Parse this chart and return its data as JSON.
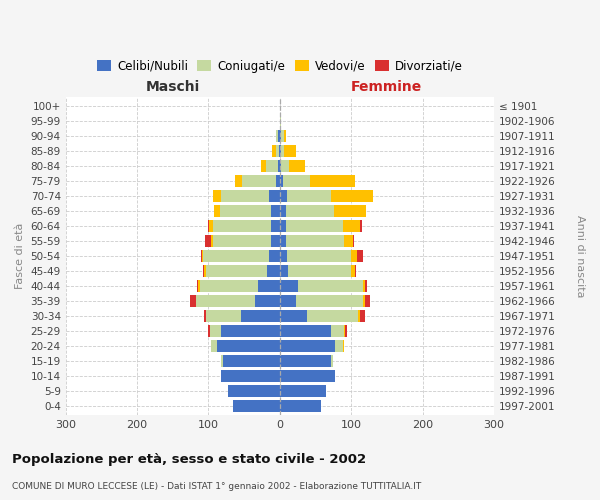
{
  "age_groups": [
    "0-4",
    "5-9",
    "10-14",
    "15-19",
    "20-24",
    "25-29",
    "30-34",
    "35-39",
    "40-44",
    "45-49",
    "50-54",
    "55-59",
    "60-64",
    "65-69",
    "70-74",
    "75-79",
    "80-84",
    "85-89",
    "90-94",
    "95-99",
    "100+"
  ],
  "birth_years": [
    "1997-2001",
    "1992-1996",
    "1987-1991",
    "1982-1986",
    "1977-1981",
    "1972-1976",
    "1967-1971",
    "1962-1966",
    "1957-1961",
    "1952-1956",
    "1947-1951",
    "1942-1946",
    "1937-1941",
    "1932-1936",
    "1927-1931",
    "1922-1926",
    "1917-1921",
    "1912-1916",
    "1907-1911",
    "1902-1906",
    "≤ 1901"
  ],
  "male": {
    "celibi": [
      65,
      72,
      82,
      80,
      88,
      82,
      55,
      35,
      30,
      18,
      15,
      12,
      12,
      12,
      15,
      5,
      2,
      1,
      3,
      0,
      0
    ],
    "coniugati": [
      0,
      0,
      0,
      2,
      8,
      16,
      48,
      82,
      82,
      86,
      92,
      82,
      82,
      72,
      68,
      48,
      18,
      5,
      2,
      0,
      0
    ],
    "vedovi": [
      0,
      0,
      0,
      0,
      1,
      0,
      1,
      1,
      2,
      2,
      2,
      3,
      5,
      8,
      10,
      10,
      6,
      5,
      1,
      0,
      0
    ],
    "divorziati": [
      0,
      0,
      0,
      0,
      0,
      2,
      2,
      8,
      2,
      2,
      2,
      8,
      2,
      0,
      0,
      0,
      1,
      0,
      0,
      0,
      0
    ]
  },
  "female": {
    "nubili": [
      58,
      65,
      78,
      72,
      78,
      72,
      38,
      22,
      25,
      12,
      10,
      8,
      8,
      8,
      10,
      5,
      1,
      1,
      2,
      0,
      0
    ],
    "coniugate": [
      0,
      0,
      0,
      3,
      10,
      18,
      72,
      95,
      92,
      88,
      90,
      82,
      80,
      68,
      62,
      38,
      12,
      5,
      4,
      1,
      0
    ],
    "vedove": [
      0,
      0,
      0,
      0,
      2,
      2,
      2,
      2,
      3,
      5,
      8,
      12,
      25,
      45,
      58,
      62,
      22,
      16,
      3,
      0,
      0
    ],
    "divorziate": [
      0,
      0,
      0,
      0,
      0,
      2,
      8,
      8,
      2,
      2,
      8,
      2,
      2,
      0,
      0,
      0,
      0,
      0,
      0,
      0,
      0
    ]
  },
  "colors": {
    "celibi": "#4472C4",
    "coniugati": "#c5d9a0",
    "vedovi": "#ffc000",
    "divorziati": "#d93030"
  },
  "legend_labels": [
    "Celibi/Nubili",
    "Coniugati/e",
    "Vedovi/e",
    "Divorziati/e"
  ],
  "title": "Popolazione per età, sesso e stato civile - 2002",
  "subtitle": "COMUNE DI MURO LECCESE (LE) - Dati ISTAT 1° gennaio 2002 - Elaborazione TUTTITALIA.IT",
  "xlabel_left": "Maschi",
  "xlabel_right": "Femmine",
  "ylabel_left": "Fasce di età",
  "ylabel_right": "Anni di nascita",
  "xlim": 300,
  "background_color": "#f5f5f5",
  "bar_background": "#ffffff",
  "xticks": [
    -300,
    -200,
    -100,
    0,
    100,
    200,
    300
  ]
}
